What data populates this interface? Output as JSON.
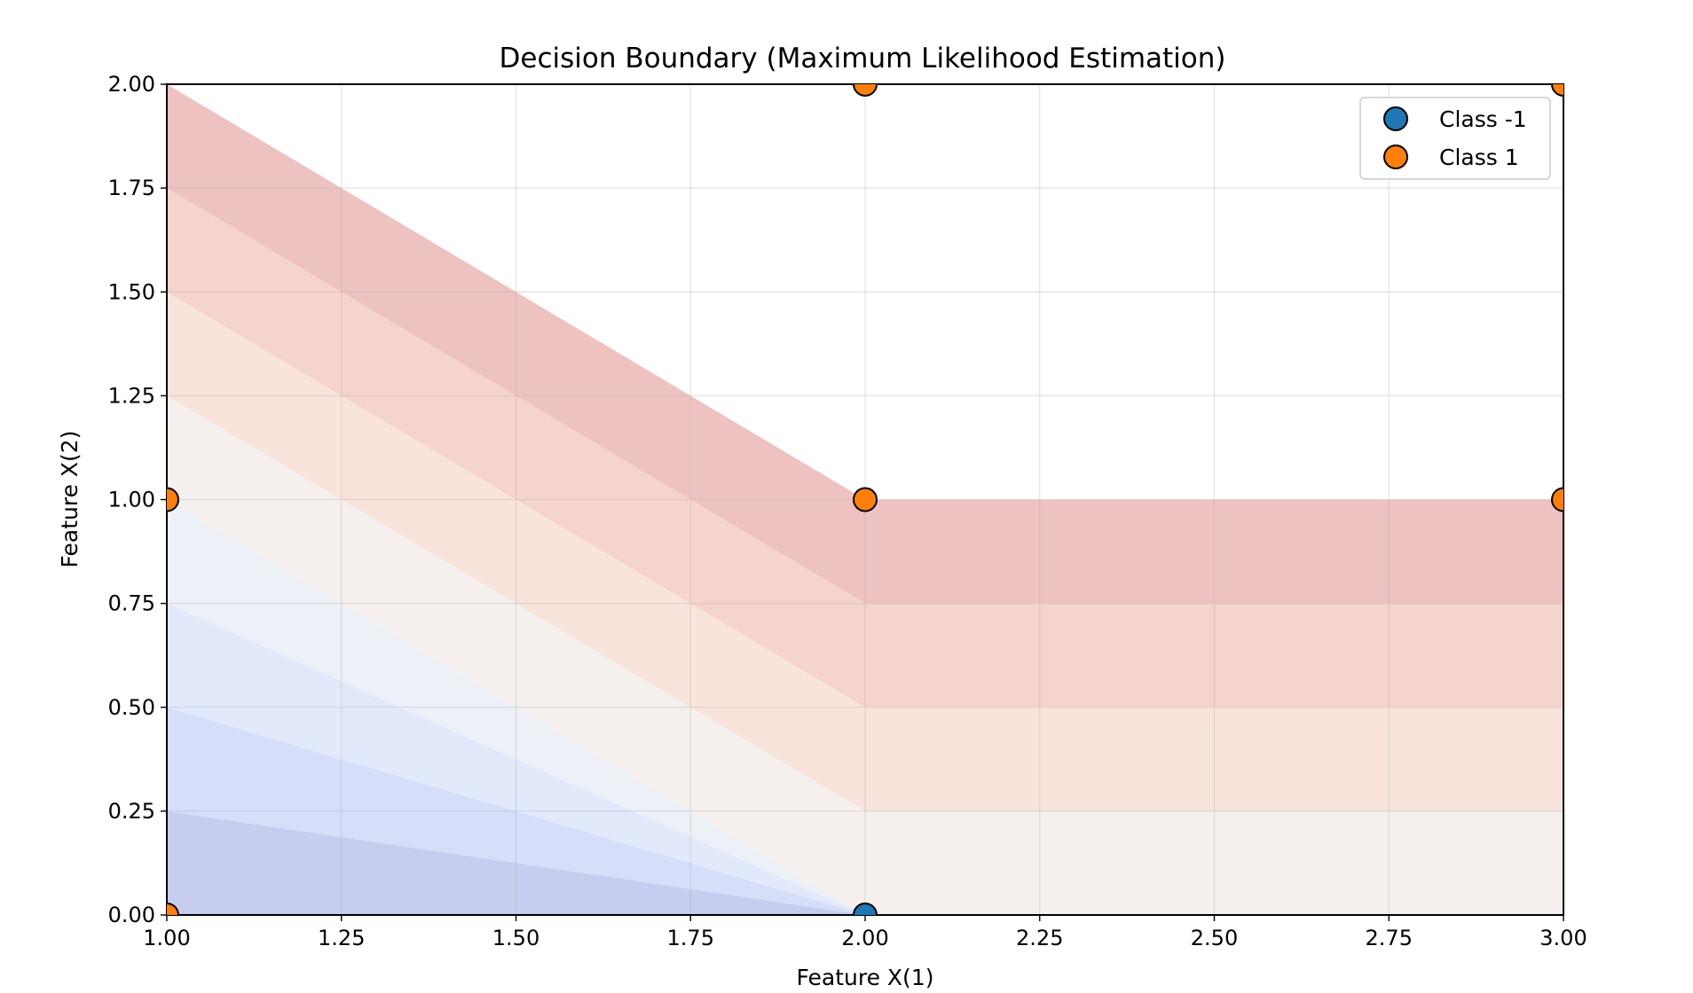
{
  "chart_data": {
    "type": "scatter",
    "title": "Decision Boundary (Maximum Likelihood Estimation)",
    "xlabel": "Feature X(1)",
    "ylabel": "Feature X(2)",
    "xlim": [
      1.0,
      3.0
    ],
    "ylim": [
      0.0,
      2.0
    ],
    "xticks": [
      1.0,
      1.25,
      1.5,
      1.75,
      2.0,
      2.25,
      2.5,
      2.75,
      3.0
    ],
    "yticks": [
      0.0,
      0.25,
      0.5,
      0.75,
      1.0,
      1.25,
      1.5,
      1.75,
      2.0
    ],
    "xtick_labels": [
      "1.00",
      "1.25",
      "1.50",
      "1.75",
      "2.00",
      "2.25",
      "2.50",
      "2.75",
      "3.00"
    ],
    "ytick_labels": [
      "0.00",
      "0.25",
      "0.50",
      "0.75",
      "1.00",
      "1.25",
      "1.50",
      "1.75",
      "2.00"
    ],
    "grid": true,
    "legend_position": "top-right",
    "series": [
      {
        "name": "Class -1",
        "color": "#1f77b4",
        "points": [
          [
            2.0,
            0.0
          ]
        ]
      },
      {
        "name": "Class 1",
        "color": "#ff7f0e",
        "points": [
          [
            1.0,
            0.0
          ],
          [
            1.0,
            1.0
          ],
          [
            2.0,
            1.0
          ],
          [
            2.0,
            2.0
          ],
          [
            3.0,
            1.0
          ],
          [
            3.0,
            2.0
          ]
        ]
      }
    ],
    "decision_surface": {
      "function": "min(x1 + x2 - 2, x2)",
      "levels": [
        -1.0,
        -0.875,
        -0.75,
        -0.625,
        -0.5,
        -0.375,
        -0.25,
        -0.125,
        0.0,
        0.125,
        0.25,
        0.375,
        0.5,
        0.625,
        0.75,
        0.875,
        1.0
      ],
      "colors": [
        "#c6cdef",
        "#d5dff9",
        "#e2e9fb",
        "#edf0f7",
        "#f5f0ee",
        "#f9e4dc",
        "#f5d4cb",
        "#eec2c1"
      ]
    }
  }
}
